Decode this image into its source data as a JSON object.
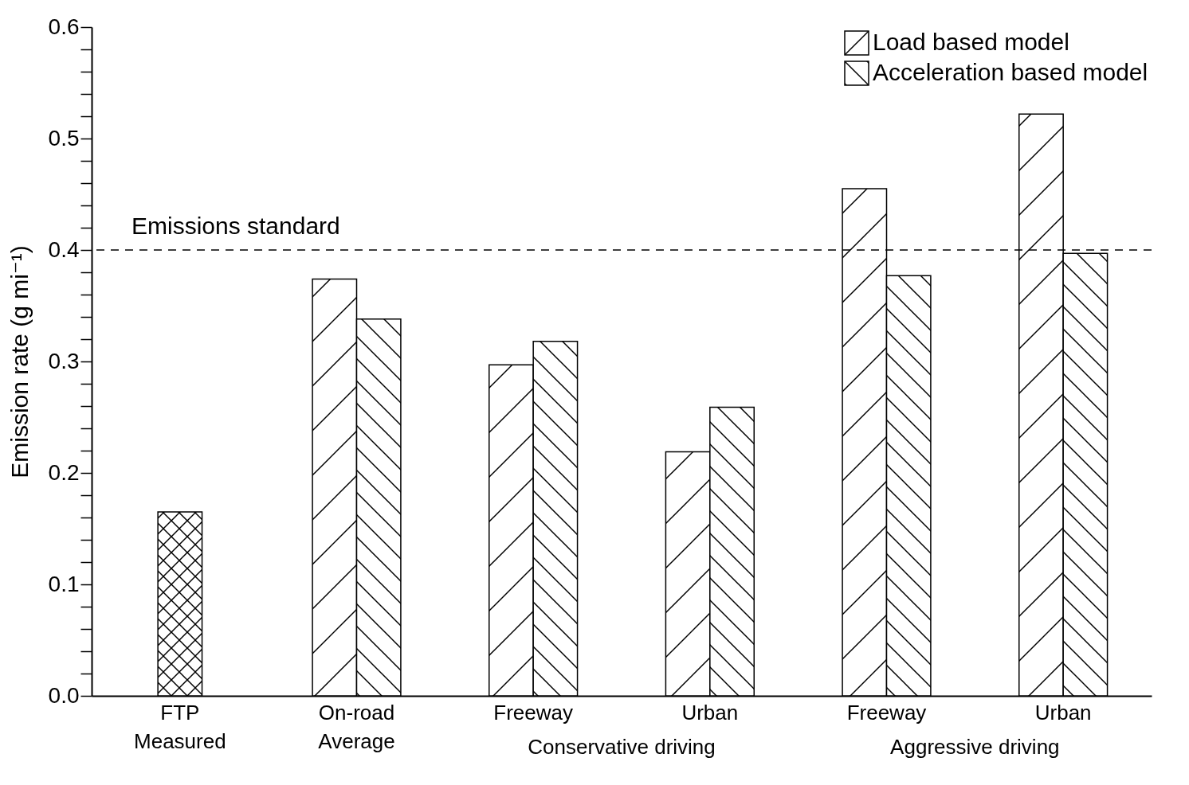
{
  "chart_data": {
    "type": "bar",
    "ylabel": "Emission rate (g mi⁻¹)",
    "categories": [
      "FTP Measured",
      "On-road Average",
      "Freeway",
      "Urban",
      "Freeway",
      "Urban"
    ],
    "series": [
      {
        "color": "#000000",
        "values": [
          0.165,
          null,
          null,
          null,
          null,
          null
        ]
      },
      {
        "name": "Load based model",
        "color": "#000000",
        "values": [
          null,
          0.374,
          0.297,
          0.219,
          0.455,
          0.522
        ]
      },
      {
        "name": "Acceleration based model",
        "color": "#000000",
        "values": [
          null,
          0.338,
          0.318,
          0.259,
          0.377,
          0.397
        ]
      }
    ],
    "ylim": [
      0,
      0.6
    ],
    "yticks": [
      {
        "value": 0,
        "label": "0.0"
      },
      {
        "value": 0.02,
        "label": null
      },
      {
        "value": 0.04,
        "label": null
      },
      {
        "value": 0.06,
        "label": null
      },
      {
        "value": 0.08,
        "label": null
      },
      0.1,
      {
        "value": 0.12,
        "label": null
      },
      {
        "value": 0.14,
        "label": null
      },
      {
        "value": 0.16,
        "label": null
      },
      {
        "value": 0.18,
        "label": null
      },
      0.2,
      {
        "value": 0.22,
        "label": null
      },
      {
        "value": 0.24,
        "label": null
      },
      {
        "value": 0.26,
        "label": null
      },
      {
        "value": 0.28,
        "label": null
      },
      0.3,
      {
        "value": 0.32,
        "label": null
      },
      {
        "value": 0.34,
        "label": null
      },
      {
        "value": 0.36,
        "label": null
      },
      {
        "value": 0.38,
        "label": null
      },
      0.4,
      {
        "value": 0.42,
        "label": null
      },
      {
        "value": 0.44,
        "label": null
      },
      {
        "value": 0.46,
        "label": null
      },
      {
        "value": 0.48,
        "label": null
      },
      0.5,
      {
        "value": 0.52,
        "label": null
      },
      {
        "value": 0.54,
        "label": null
      },
      {
        "value": 0.56,
        "label": null
      },
      {
        "value": 0.58,
        "label": null
      },
      0.6
    ],
    "ref_lines": [
      {
        "axis": "y",
        "value": 0.4,
        "label": "Emissions standard",
        "color": "#000000",
        "line_style": "dashed"
      }
    ],
    "annotations": [
      "Conservative driving",
      "Aggressive driving"
    ],
    "legend": "top right",
    "grid": false
  }
}
